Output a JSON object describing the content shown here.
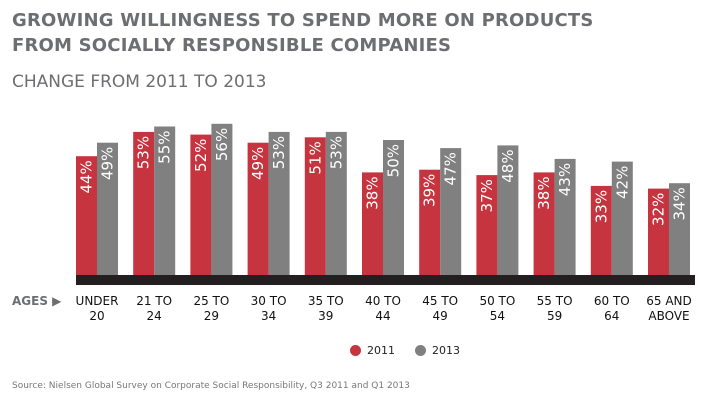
{
  "chart_data": {
    "type": "bar",
    "title": "GROWING WILLINGNESS TO SPEND MORE ON PRODUCTS FROM SOCIALLY RESPONSIBLE COMPANIES",
    "subtitle": "CHANGE FROM 2011 TO 2013",
    "xlabel": "AGES ▶",
    "categories": [
      "UNDER\n20",
      "21 TO\n24",
      "25 TO\n29",
      "30 TO\n34",
      "35 TO\n39",
      "40 TO\n44",
      "45 TO\n49",
      "50 TO\n54",
      "55 TO\n59",
      "60 TO\n64",
      "65 AND\nABOVE"
    ],
    "series": [
      {
        "name": "2011",
        "color": "#c5343f",
        "values": [
          44,
          53,
          52,
          49,
          51,
          38,
          39,
          37,
          38,
          33,
          32
        ]
      },
      {
        "name": "2013",
        "color": "#808080",
        "values": [
          49,
          55,
          56,
          53,
          53,
          50,
          47,
          48,
          43,
          42,
          34
        ]
      }
    ],
    "unit": "%",
    "ylim": [
      0,
      60
    ],
    "grid": false,
    "legend_position": "bottom-center",
    "source": "Source: Nielsen Global Survey on Corporate Social Responsibility, Q3 2011 and Q1 2013"
  }
}
